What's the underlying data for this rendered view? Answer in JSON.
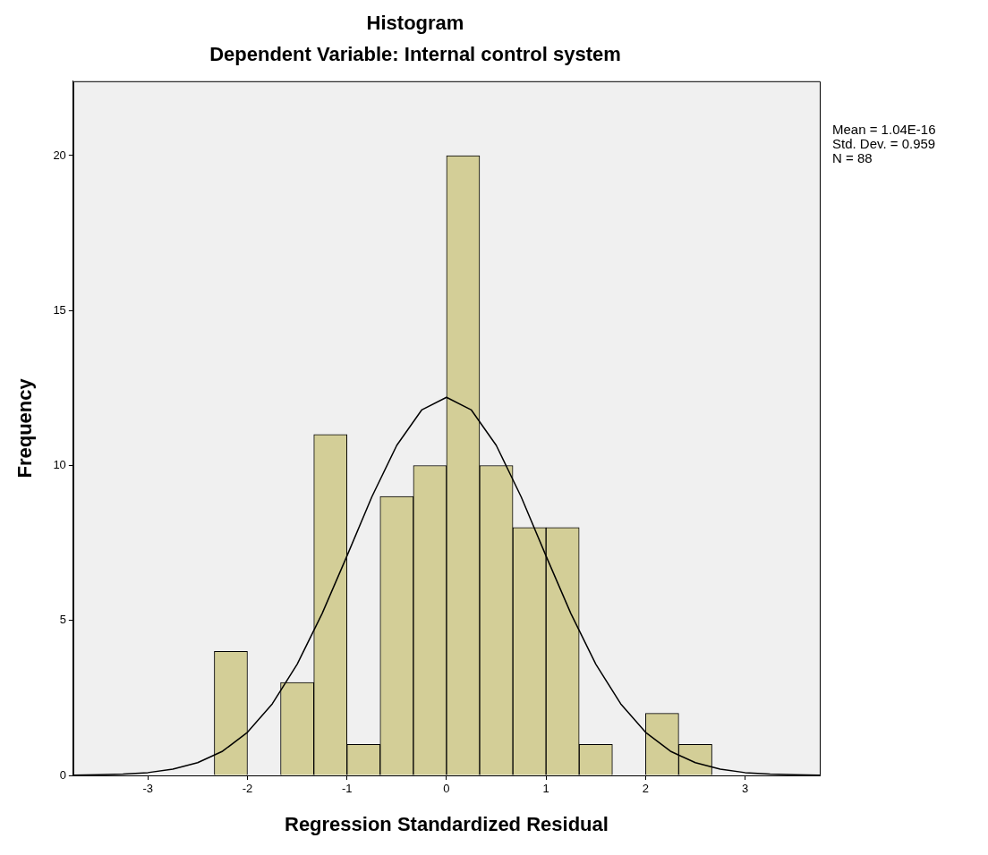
{
  "chart_data": {
    "type": "histogram",
    "title": "Histogram",
    "subtitle": "Dependent Variable: Internal control system",
    "xlabel": "Regression Standardized Residual",
    "ylabel": "Frequency",
    "bins": [
      -2.333,
      -2,
      -1.667,
      -1.333,
      -1,
      -0.667,
      -0.333,
      0,
      0.333,
      0.667,
      1,
      1.333,
      1.667,
      2,
      2.333,
      2.667
    ],
    "values": [
      4,
      0,
      3,
      11,
      1,
      9,
      10,
      20,
      10,
      8,
      8,
      1,
      0,
      2,
      1
    ],
    "color": "#d3ce97",
    "series": [
      {
        "type": "line",
        "color": "#000000",
        "x": [
          -3.75,
          -3.5,
          -3.25,
          -3,
          -2.75,
          -2.5,
          -2.25,
          -2,
          -1.75,
          -1.5,
          -1.25,
          -1,
          -0.75,
          -0.5,
          -0.25,
          0,
          0.25,
          0.5,
          0.75,
          1,
          1.25,
          1.5,
          1.75,
          2,
          2.25,
          2.5,
          2.75,
          3,
          3.25,
          3.5,
          3.75
        ],
        "values": [
          0.01,
          0.02,
          0.04,
          0.09,
          0.2,
          0.41,
          0.78,
          1.39,
          2.31,
          3.59,
          5.22,
          7.08,
          8.99,
          10.65,
          11.79,
          12.2,
          11.79,
          10.65,
          8.99,
          7.08,
          5.22,
          3.59,
          2.31,
          1.39,
          0.78,
          0.41,
          0.2,
          0.09,
          0.04,
          0.02,
          0.01
        ]
      }
    ],
    "xlim": [
      -3.75,
      3.75
    ],
    "xticks": [
      -3,
      -2,
      -1,
      0,
      1,
      2,
      3
    ],
    "ylim": [
      0,
      22.4
    ],
    "yticks": [
      0,
      5,
      10,
      15,
      20
    ],
    "grid": false,
    "legend": false,
    "marker": "none",
    "annotations": [
      "Mean = 1.04E-16",
      "Std. Dev. = 0.959",
      "N = 88"
    ]
  }
}
